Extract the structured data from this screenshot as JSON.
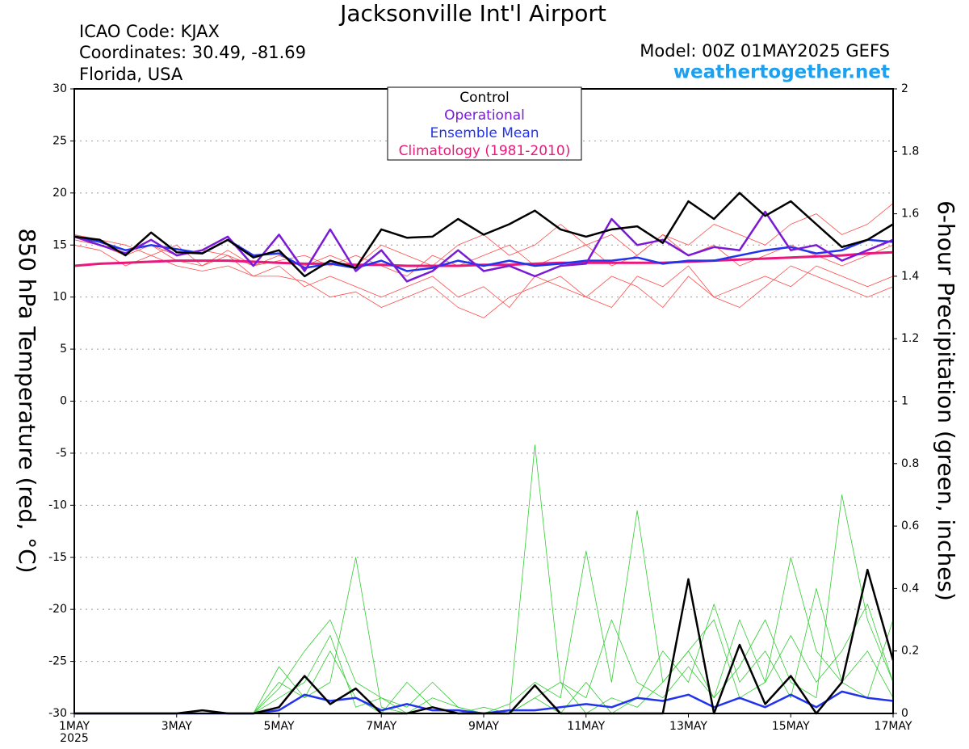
{
  "chart_data": {
    "type": "line",
    "title": "Jacksonville Int'l Airport",
    "info_left": [
      "ICAO Code: KJAX",
      "Coordinates: 30.49, -81.69",
      "Florida, USA"
    ],
    "model": "Model: 00Z 01MAY2025 GEFS",
    "site": "weathertogether.net",
    "ylabel": "850 hPa Temperature (red, °C)",
    "y2label": "6-hour Precipitation (green, inches)",
    "year_label": "2025",
    "grid": true,
    "x": [
      0,
      0.5,
      1,
      1.5,
      2,
      2.5,
      3,
      3.5,
      4,
      4.5,
      5,
      5.5,
      6,
      6.5,
      7,
      7.5,
      8,
      8.5,
      9,
      9.5,
      10,
      10.5,
      11,
      11.5,
      12,
      12.5,
      13,
      13.5,
      14,
      14.5,
      15,
      15.5,
      16
    ],
    "xlim": [
      0,
      16
    ],
    "xticks": [
      {
        "value": 0,
        "label": "1MAY"
      },
      {
        "value": 2,
        "label": "3MAY"
      },
      {
        "value": 4,
        "label": "5MAY"
      },
      {
        "value": 6,
        "label": "7MAY"
      },
      {
        "value": 8,
        "label": "9MAY"
      },
      {
        "value": 10,
        "label": "11MAY"
      },
      {
        "value": 12,
        "label": "13MAY"
      },
      {
        "value": 14,
        "label": "15MAY"
      },
      {
        "value": 16,
        "label": "17MAY"
      }
    ],
    "ylim": [
      -30,
      30
    ],
    "yticks": [
      -30,
      -25,
      -20,
      -15,
      -10,
      -5,
      0,
      5,
      10,
      15,
      20,
      25,
      30
    ],
    "y2lim": [
      0,
      2
    ],
    "y2ticks": [
      0,
      0.2,
      0.4,
      0.6,
      0.8,
      1,
      1.2,
      1.4,
      1.6,
      1.8,
      2
    ],
    "series": [
      {
        "color": "#ff4a4a",
        "line_width": 0.8,
        "values": [
          15.5,
          15,
          14,
          15,
          13.5,
          13,
          14,
          12,
          13,
          11,
          12,
          11,
          10,
          11,
          12,
          10,
          11,
          9,
          12,
          11,
          10,
          12,
          11,
          9,
          12,
          10,
          9,
          11,
          13,
          12,
          11,
          10,
          11
        ]
      },
      {
        "color": "#ff4a4a",
        "line_width": 0.8,
        "values": [
          16,
          15.5,
          15,
          14,
          15,
          13,
          14.5,
          13,
          14,
          13,
          14,
          13,
          15,
          14,
          13,
          15,
          16,
          14,
          15,
          17,
          15,
          16,
          14,
          16,
          15,
          17,
          16,
          15,
          17,
          18,
          16,
          17,
          19
        ]
      },
      {
        "color": "#ff4a4a",
        "line_width": 0.8,
        "values": [
          15,
          14.5,
          13,
          14,
          13,
          12.5,
          13,
          12,
          12,
          11.5,
          10,
          10.5,
          9,
          10,
          11,
          9,
          8,
          10,
          11,
          12,
          10,
          9,
          12,
          11,
          13,
          10,
          11,
          12,
          11,
          13,
          12,
          11,
          12
        ]
      },
      {
        "color": "#ff4a4a",
        "line_width": 0.8,
        "values": [
          16,
          15,
          14.5,
          15,
          14,
          14.5,
          14,
          13,
          13.5,
          14,
          13,
          14,
          13,
          12,
          14,
          13,
          14,
          15,
          13,
          14,
          15,
          13,
          14,
          16,
          14,
          15,
          13,
          14,
          15,
          14,
          13,
          14,
          15
        ]
      },
      {
        "color": "#33cc33",
        "line_width": 0.8,
        "axis": "y2",
        "values": [
          0,
          0,
          0,
          0,
          0,
          0,
          0,
          0,
          0.15,
          0.05,
          0.1,
          0.5,
          0.02,
          0,
          0.05,
          0.02,
          0,
          0,
          0.86,
          0.1,
          0,
          0.05,
          0.02,
          0.1,
          0.2,
          0.05,
          0.15,
          0.3,
          0.1,
          0.05,
          0.7,
          0.3,
          0.1
        ]
      },
      {
        "color": "#33cc33",
        "line_width": 0.8,
        "axis": "y2",
        "values": [
          0,
          0,
          0,
          0,
          0,
          0,
          0,
          0,
          0.08,
          0.2,
          0.3,
          0.1,
          0.05,
          0.02,
          0.1,
          0.02,
          0,
          0.03,
          0.1,
          0.05,
          0.52,
          0.1,
          0.65,
          0.1,
          0.2,
          0.3,
          0.05,
          0.1,
          0.5,
          0.2,
          0.1,
          0.05,
          0.3
        ]
      },
      {
        "color": "#33cc33",
        "line_width": 0.8,
        "axis": "y2",
        "values": [
          0,
          0,
          0,
          0,
          0,
          0,
          0,
          0,
          0.05,
          0.1,
          0.25,
          0.02,
          0.05,
          0,
          0,
          0,
          0.02,
          0,
          0.05,
          0,
          0.1,
          0,
          0.05,
          0.2,
          0.1,
          0.35,
          0.1,
          0.2,
          0.05,
          0.4,
          0.1,
          0.2,
          0.05
        ]
      },
      {
        "color": "#33cc33",
        "line_width": 0.8,
        "axis": "y2",
        "values": [
          0,
          0,
          0,
          0,
          0,
          0,
          0,
          0,
          0.1,
          0.05,
          0.2,
          0.05,
          0,
          0.1,
          0.02,
          0,
          0,
          0,
          0.05,
          0.1,
          0.05,
          0.3,
          0.1,
          0.05,
          0.15,
          0.05,
          0.3,
          0.1,
          0.25,
          0.1,
          0.2,
          0.35,
          0.1
        ]
      },
      {
        "color": "#2233ee",
        "line_width": 2.5,
        "axis": "y2",
        "values": [
          0,
          0,
          0,
          0,
          0,
          0,
          0,
          0,
          0.01,
          0.06,
          0.04,
          0.05,
          0.01,
          0.03,
          0.01,
          0.01,
          0,
          0.01,
          0.01,
          0.02,
          0.03,
          0.02,
          0.05,
          0.04,
          0.06,
          0.02,
          0.05,
          0.02,
          0.06,
          0.02,
          0.07,
          0.05,
          0.04
        ]
      },
      {
        "color": "#000000",
        "line_width": 2.5,
        "axis": "y2",
        "values": [
          0,
          0,
          0,
          0,
          0,
          0.01,
          0,
          0,
          0.02,
          0.12,
          0.03,
          0.08,
          0,
          0,
          0.02,
          0,
          0,
          0,
          0.09,
          0,
          0,
          0,
          0,
          0,
          0.43,
          0,
          0.22,
          0.03,
          0.12,
          0,
          0.1,
          0.46,
          0.17
        ]
      },
      {
        "name": "Climatology (1981-2010)",
        "color": "#e8197a",
        "line_width": 3,
        "values": [
          13.0,
          13.2,
          13.3,
          13.4,
          13.5,
          13.5,
          13.5,
          13.4,
          13.3,
          13.2,
          13.2,
          13.1,
          13.1,
          13.0,
          13.0,
          13.0,
          13.1,
          13.1,
          13.2,
          13.3,
          13.3,
          13.3,
          13.3,
          13.3,
          13.4,
          13.5,
          13.6,
          13.7,
          13.8,
          13.9,
          14.0,
          14.2,
          14.3
        ]
      },
      {
        "name": "Ensemble Mean",
        "color": "#2233ee",
        "line_width": 2.5,
        "values": [
          15.8,
          15.3,
          14.5,
          15,
          14.6,
          14.2,
          15.5,
          14,
          14.2,
          12.8,
          13.2,
          12.8,
          13.5,
          12.5,
          12.8,
          13.5,
          13,
          13.5,
          13,
          13.2,
          13.5,
          13.5,
          13.8,
          13.2,
          13.5,
          13.5,
          14,
          14.5,
          14.8,
          14.2,
          14.5,
          15.5,
          15.3
        ]
      },
      {
        "name": "Operational",
        "color": "#7a1ad6",
        "line_width": 2.5,
        "values": [
          15.8,
          15,
          14.2,
          15.5,
          14,
          14.5,
          15.8,
          13,
          16,
          12.5,
          16.5,
          12.5,
          14.5,
          11.5,
          12.5,
          14.5,
          12.5,
          13,
          12,
          13,
          13.2,
          17.5,
          15,
          15.5,
          14,
          14.8,
          14.5,
          18.2,
          14.5,
          15,
          13.5,
          14.5,
          15.5
        ]
      },
      {
        "name": "Control",
        "color": "#000000",
        "line_width": 2.5,
        "values": [
          15.8,
          15.5,
          14,
          16.2,
          14.3,
          14.2,
          15.5,
          13.8,
          14.5,
          12,
          13.5,
          12.8,
          16.5,
          15.7,
          15.8,
          17.5,
          16,
          17,
          18.3,
          16.5,
          15.8,
          16.5,
          16.8,
          15.2,
          19.2,
          17.5,
          20,
          17.8,
          19.2,
          17,
          14.8,
          15.5,
          17
        ]
      }
    ]
  }
}
